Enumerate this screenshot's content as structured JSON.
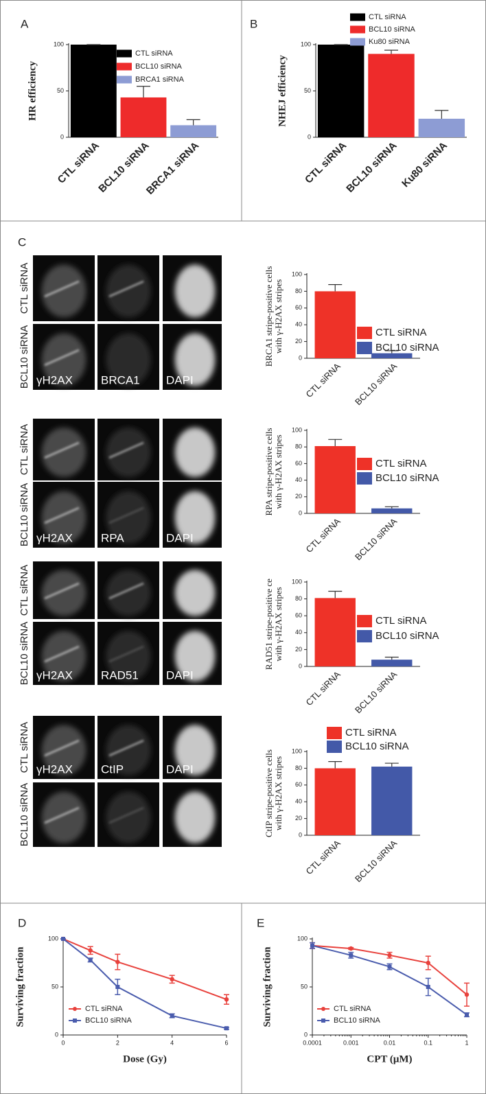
{
  "panel_labels": [
    "A",
    "B",
    "C",
    "D",
    "E"
  ],
  "micrographs": [
    {
      "rows": [
        "CTL siRNA",
        "BCL10 siRNA"
      ],
      "channels": [
        "γH2AX",
        "BRCA1",
        "DAPI"
      ]
    },
    {
      "rows": [
        "CTL siRNA",
        "BCL10 siRNA"
      ],
      "channels": [
        "γH2AX",
        "RPA",
        "DAPI"
      ]
    },
    {
      "rows": [
        "CTL siRNA",
        "BCL10 siRNA"
      ],
      "channels": [
        "γH2AX",
        "RAD51",
        "DAPI"
      ]
    },
    {
      "rows": [
        "CTL siRNA",
        "BCL10 siRNA"
      ],
      "channels": [
        "γH2AX",
        "CtIP",
        "DAPI"
      ]
    }
  ],
  "chart_data": [
    {
      "type": "bar",
      "ylabel": "HR efficiency",
      "categories": [
        "CTL siRNA",
        "BCL10 siRNA",
        "BRCA1 siRNA"
      ],
      "values": [
        100,
        43,
        13
      ],
      "errors": [
        0,
        12,
        6
      ],
      "colors": [
        "#000000",
        "#ee2b2b",
        "#8d9cd4"
      ],
      "ylim": [
        0,
        100
      ],
      "yticks": [
        0,
        50,
        100
      ],
      "legend": "top-right"
    },
    {
      "type": "bar",
      "ylabel": "NHEJ efficiency",
      "categories": [
        "CTL siRNA",
        "BCL10 siRNA",
        "Ku80 siRNA"
      ],
      "values": [
        100,
        90,
        20
      ],
      "errors": [
        0,
        4,
        9
      ],
      "colors": [
        "#000000",
        "#ee2b2b",
        "#8d9cd4"
      ],
      "ylim": [
        0,
        100
      ],
      "yticks": [
        0,
        50,
        100
      ],
      "legend": "top"
    },
    {
      "type": "bar",
      "ylabel": [
        "BRCA1 stripe-positive cells",
        "with γ-H2AX stripes"
      ],
      "categories": [
        "CTL siRNA",
        "BCL10 siRNA"
      ],
      "values": [
        80,
        6
      ],
      "errors": [
        8,
        3
      ],
      "colors": [
        "#ee3228",
        "#4359a8"
      ],
      "ylim": [
        0,
        100
      ],
      "yticks": [
        0,
        20,
        40,
        60,
        80,
        100
      ],
      "legend": "right"
    },
    {
      "type": "bar",
      "ylabel": [
        "RPA stripe-positive cells",
        "with γ-H2AX stripes"
      ],
      "categories": [
        "CTL siRNA",
        "BCL10 siRNA"
      ],
      "values": [
        81,
        6
      ],
      "errors": [
        8,
        2
      ],
      "colors": [
        "#ee3228",
        "#4359a8"
      ],
      "ylim": [
        0,
        100
      ],
      "yticks": [
        0,
        20,
        40,
        60,
        80,
        100
      ],
      "legend": "right"
    },
    {
      "type": "bar",
      "ylabel": [
        "RAD51 stripe-positive ce",
        "with γ-H2AX stripes"
      ],
      "categories": [
        "CTL siRNA",
        "BCL10 siRNA"
      ],
      "values": [
        81,
        8
      ],
      "errors": [
        8,
        3
      ],
      "colors": [
        "#ee3228",
        "#4359a8"
      ],
      "ylim": [
        0,
        100
      ],
      "yticks": [
        0,
        20,
        40,
        60,
        80,
        100
      ],
      "legend": "right"
    },
    {
      "type": "bar",
      "ylabel": [
        "CtIP stripe-positive cells",
        "with γ-H2AX stripes"
      ],
      "categories": [
        "CTL siRNA",
        "BCL10 siRNA"
      ],
      "values": [
        80,
        82
      ],
      "errors": [
        8,
        4
      ],
      "colors": [
        "#ee3228",
        "#4359a8"
      ],
      "ylim": [
        0,
        100
      ],
      "yticks": [
        0,
        20,
        40,
        60,
        80,
        100
      ],
      "legend": "top"
    },
    {
      "type": "line",
      "xlabel": "Dose (Gy)",
      "ylabel": "Surviving fraction",
      "x": [
        0,
        1,
        2,
        4,
        6
      ],
      "series": [
        {
          "name": "CTL siRNA",
          "color": "#e8413c",
          "marker": "circle",
          "values": [
            100,
            88,
            76,
            58,
            37
          ],
          "errors": [
            0,
            4,
            8,
            4,
            5
          ]
        },
        {
          "name": "BCL10 siRNA",
          "color": "#4a5cad",
          "marker": "square",
          "values": [
            100,
            78,
            50,
            20,
            7
          ],
          "errors": [
            0,
            2,
            8,
            2,
            1
          ]
        }
      ],
      "xlim": [
        0,
        6
      ],
      "xticks": [
        0,
        2,
        4,
        6
      ],
      "ylim": [
        0,
        100
      ],
      "yticks": [
        0,
        50,
        100
      ],
      "legend": "bottom-left"
    },
    {
      "type": "line",
      "xlabel": "CPT (μM)",
      "ylabel": "Surviving fraction",
      "x": [
        0.0001,
        0.001,
        0.01,
        0.1,
        1
      ],
      "xscale": "log",
      "series": [
        {
          "name": "CTL siRNA",
          "color": "#e8413c",
          "marker": "circle",
          "values": [
            93,
            90,
            83,
            75,
            42
          ],
          "errors": [
            3,
            1,
            3,
            7,
            12
          ]
        },
        {
          "name": "BCL10 siRNA",
          "color": "#4a5cad",
          "marker": "square",
          "values": [
            93,
            83,
            71,
            50,
            21
          ],
          "errors": [
            3,
            3,
            3,
            9,
            2
          ]
        }
      ],
      "xlim": [
        0.0001,
        1
      ],
      "xticks": [
        0.0001,
        0.001,
        0.01,
        0.1,
        1
      ],
      "ylim": [
        0,
        100
      ],
      "yticks": [
        0,
        50,
        100
      ],
      "legend": "bottom-left"
    }
  ]
}
